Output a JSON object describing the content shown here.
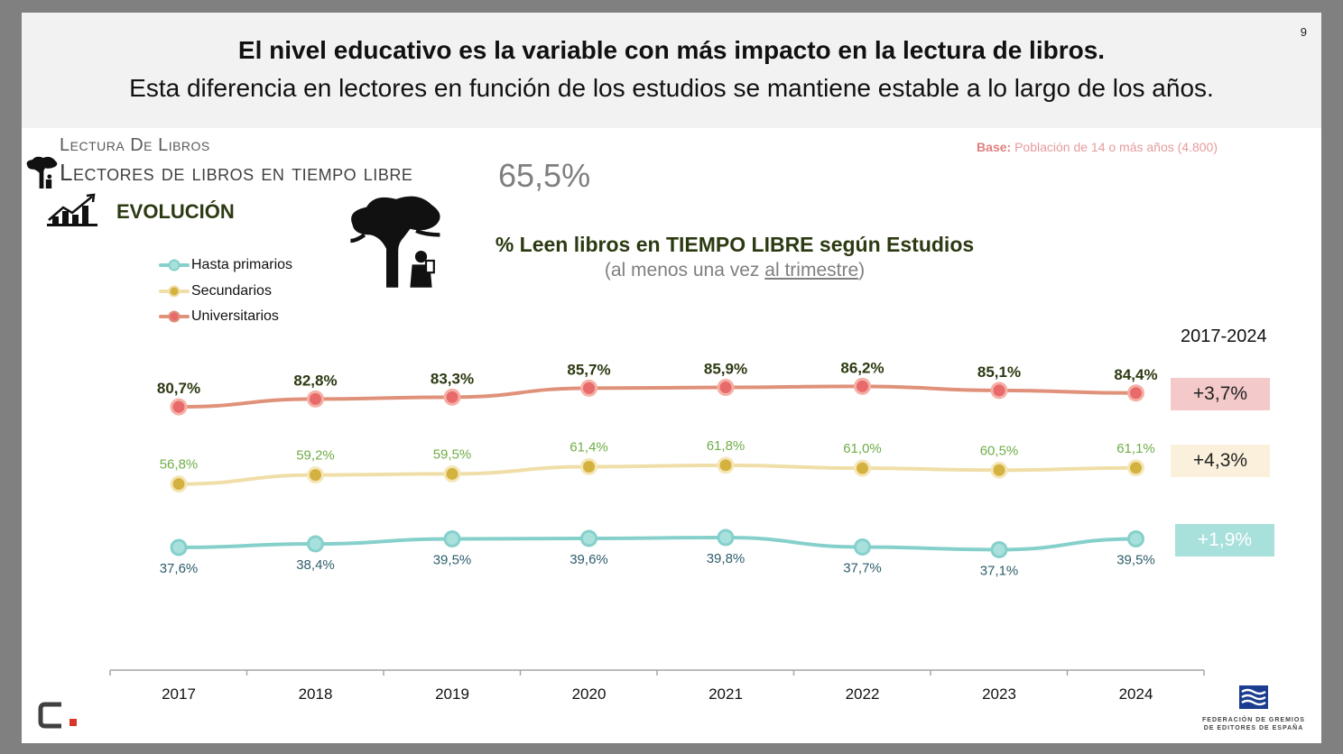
{
  "page_number": "9",
  "headline": "El nivel educativo es la variable con más impacto en la lectura de libros.",
  "subheadline": "Esta diferencia en lectores en función de los estudios se mantiene estable a lo largo de los años.",
  "section_label": "Lectura De Libros",
  "section_title": "Lectores de libros en tiempo libre",
  "overall_value": "65,5%",
  "evolution_label": "EVOLUCIÓN",
  "base_note": {
    "label": "Base:",
    "text": " Población de 14 o más años (4.800)"
  },
  "chart_title": "% Leen libros en TIEMPO LIBRE según Estudios",
  "chart_subtitle": {
    "before": "(al menos una vez ",
    "underlined": "al trimestre",
    "after": ")"
  },
  "range_label": "2017-2024",
  "icons": [
    "tree-reader-icon",
    "growth-chart-icon",
    "brand-logo-icon",
    "federation-logo-icon"
  ],
  "federation_text": [
    "FEDERACIÓN DE GREMIOS",
    "DE EDITORES DE ESPAÑA"
  ],
  "colors": {
    "universitarios_line": "#e0917a",
    "universitarios_marker": "#e86a6a",
    "secundarios_line": "#f0dea8",
    "secundarios_marker": "#d4b23f",
    "primarios_line": "#86d0cc",
    "primarios_marker": "#a8e0dc"
  },
  "chart_data": {
    "type": "line",
    "categories": [
      "2017",
      "2018",
      "2019",
      "2020",
      "2021",
      "2022",
      "2023",
      "2024"
    ],
    "series": [
      {
        "name": "Universitarios",
        "values": [
          80.7,
          82.8,
          83.3,
          85.7,
          85.9,
          86.2,
          85.1,
          84.4
        ],
        "labels": [
          "80,7%",
          "82,8%",
          "83,3%",
          "85,7%",
          "85,9%",
          "86,2%",
          "85,1%",
          "84,4%"
        ],
        "change": "+3,7%"
      },
      {
        "name": "Secundarios",
        "values": [
          56.8,
          59.2,
          59.5,
          61.4,
          61.8,
          61.0,
          60.5,
          61.1
        ],
        "labels": [
          "56,8%",
          "59,2%",
          "59,5%",
          "61,4%",
          "61,8%",
          "61,0%",
          "60,5%",
          "61,1%"
        ],
        "change": "+4,3%"
      },
      {
        "name": "Hasta primarios",
        "values": [
          37.6,
          38.4,
          39.5,
          39.6,
          39.8,
          37.7,
          37.1,
          39.5
        ],
        "labels": [
          "37,6%",
          "38,4%",
          "39,5%",
          "39,6%",
          "39,8%",
          "37,7%",
          "37,1%",
          "39,5%"
        ],
        "change": "+1,9%"
      }
    ],
    "legend": [
      "Hasta primarios",
      "Secundarios",
      "Universitarios"
    ],
    "legend_position": "top-left",
    "grid": false
  }
}
